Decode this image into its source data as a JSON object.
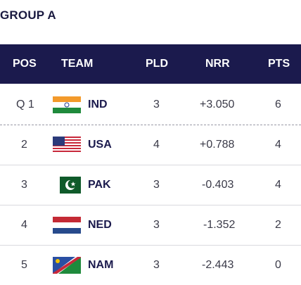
{
  "group_title": "GROUP A",
  "columns": {
    "pos": "POS",
    "team": "TEAM",
    "pld": "PLD",
    "nrr": "NRR",
    "pts": "PTS"
  },
  "rows": [
    {
      "pos": "Q 1",
      "team": "IND",
      "pld": "3",
      "nrr": "+3.050",
      "pts": "6",
      "flag": "india-flag"
    },
    {
      "pos": "2",
      "team": "USA",
      "pld": "4",
      "nrr": "+0.788",
      "pts": "4",
      "flag": "usa-flag"
    },
    {
      "pos": "3",
      "team": "PAK",
      "pld": "3",
      "nrr": "-0.403",
      "pts": "4",
      "flag": "pakistan-flag"
    },
    {
      "pos": "4",
      "team": "NED",
      "pld": "3",
      "nrr": "-1.352",
      "pts": "2",
      "flag": "netherlands-flag"
    },
    {
      "pos": "5",
      "team": "NAM",
      "pld": "3",
      "nrr": "-2.443",
      "pts": "0",
      "flag": "namibia-flag"
    }
  ],
  "colors": {
    "header_bg": "#1b1a4d",
    "team_text": "#1b1a4d"
  }
}
